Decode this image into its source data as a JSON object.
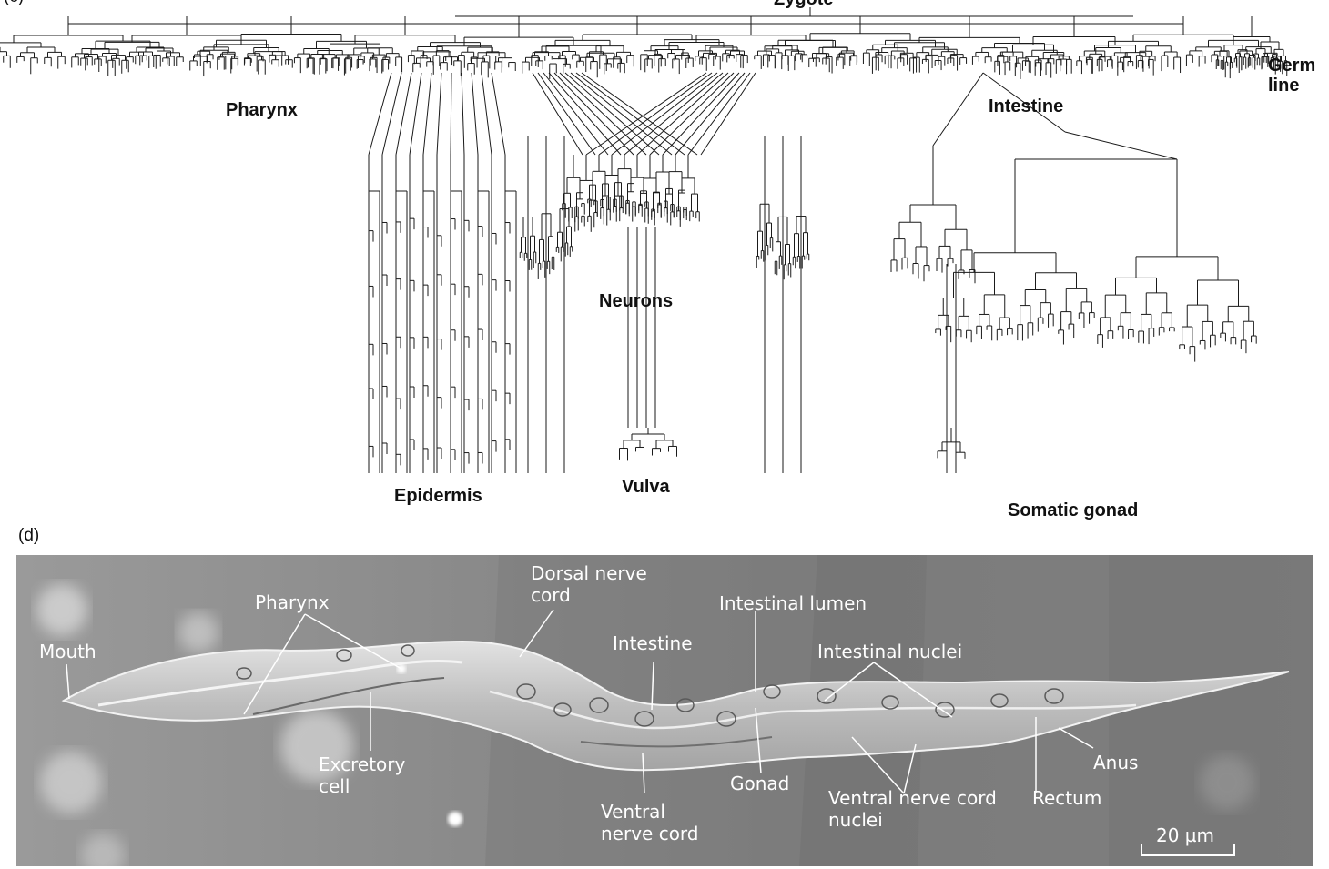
{
  "panel_c": {
    "panel_label": "(c)",
    "root_label": "Zygote",
    "labels": {
      "pharynx": "Pharynx",
      "germ_line": [
        "Germ",
        "line"
      ],
      "intestine": "Intestine",
      "neurons": "Neurons",
      "epidermis": "Epidermis",
      "vulva": "Vulva",
      "somatic_gonad": "Somatic gonad"
    }
  },
  "panel_d": {
    "panel_label": "(d)",
    "labels": {
      "mouth": "Mouth",
      "pharynx": "Pharynx",
      "dorsal_nerve_cord": [
        "Dorsal nerve",
        "cord"
      ],
      "intestine": "Intestine",
      "intestinal_lumen": "Intestinal lumen",
      "intestinal_nuclei": "Intestinal nuclei",
      "excretory_cell": [
        "Excretory",
        "cell"
      ],
      "gonad": "Gonad",
      "ventral_nerve_cord": [
        "Ventral",
        "nerve cord"
      ],
      "ventral_nerve_cord_nuclei": [
        "Ventral nerve cord",
        "nuclei"
      ],
      "rectum": "Rectum",
      "anus": "Anus",
      "scale_bar": "20 µm"
    }
  },
  "colors": {
    "line": "#1a1a1a",
    "photo_background": "#8e8e8e",
    "photo_label": "#ffffff"
  }
}
